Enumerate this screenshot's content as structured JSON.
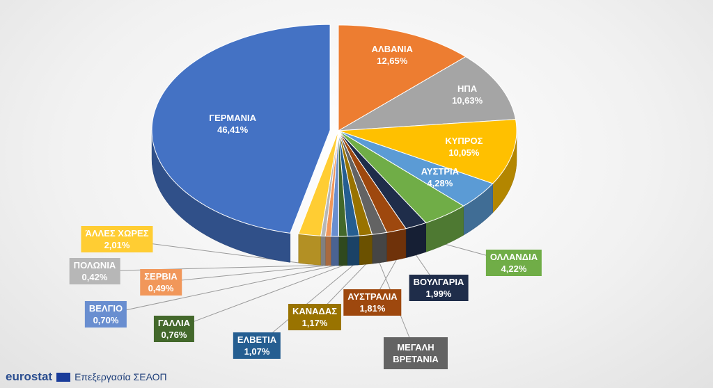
{
  "chart_data": {
    "type": "pie",
    "categories": [
      "ΑΛΒΑΝΙΑ",
      "ΗΠΑ",
      "ΚΥΠΡΟΣ",
      "ΑΥΣΤΡΙΑ",
      "ΟΛΛΑΝΔΙΑ",
      "ΒΟΥΛΓΑΡΙΑ",
      "ΑΥΣΤΡΑΛΙΑ",
      "ΜΕΓΑΛΗ ΒΡΕΤΑΝΙΑ",
      "ΚΑΝΑΔΑΣ",
      "ΕΛΒΕΤΙΑ",
      "ΓΑΛΛΙΑ",
      "ΒΕΛΓΙΟ",
      "ΣΕΡΒΙΑ",
      "ΠΟΛΩΝΙΑ",
      "ΆΛΛΕΣ ΧΩΡΕΣ",
      "ΓΕΡΜΑΝΙΑ"
    ],
    "values": [
      12.65,
      10.63,
      10.05,
      4.28,
      4.22,
      1.99,
      1.81,
      1.34,
      1.17,
      1.07,
      0.76,
      0.7,
      0.49,
      0.42,
      2.01,
      46.41
    ],
    "value_labels": [
      "12,65%",
      "10,63%",
      "10,05%",
      "4,28%",
      "4,22%",
      "1,99%",
      "1,81%",
      null,
      "1,17%",
      "1,07%",
      "0,76%",
      "0,70%",
      "0,49%",
      "0,42%",
      "2,01%",
      "46,41%"
    ],
    "colors": [
      "#ed7d31",
      "#a5a5a5",
      "#ffc000",
      "#5b9bd5",
      "#70ad47",
      "#1f2d4a",
      "#9e480e",
      "#636363",
      "#997300",
      "#255e91",
      "#43682b",
      "#698ed0",
      "#f1975a",
      "#b7b7b7",
      "#ffcd33",
      "#4472c4"
    ],
    "source_logo": "eurostat",
    "source": "Επεξεργασία ΣΕΑΟΠ"
  }
}
